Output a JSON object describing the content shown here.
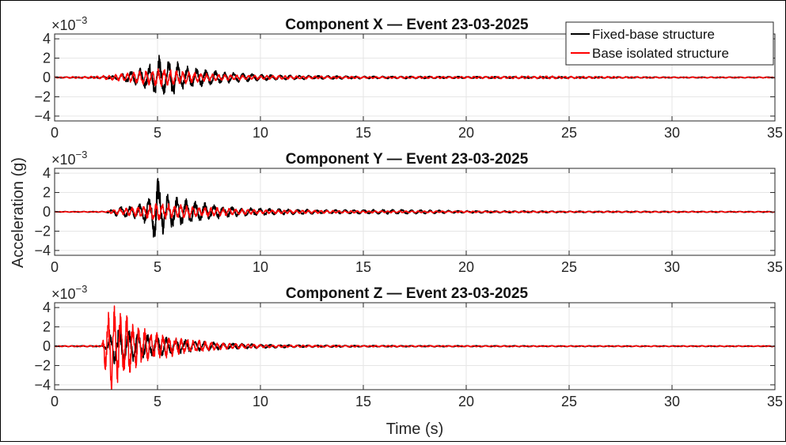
{
  "figure": {
    "ylabel": "Acceleration (g)",
    "xlabel": "Time (s)",
    "colors": {
      "fixed": "#000000",
      "isolated": "#ff0000",
      "grid": "#e6e6e6",
      "axis": "#262626"
    }
  },
  "legend": {
    "placement": "top-right",
    "items": [
      {
        "name": "Fixed-base structure",
        "color": "#000000"
      },
      {
        "name": "Base isolated structure",
        "color": "#ff0000"
      }
    ]
  },
  "chart_data": [
    {
      "type": "line",
      "title": "Component X — Event 23-03-2025",
      "xlabel": "",
      "ylabel": "",
      "exponent": "×10",
      "exponent_power": "−3",
      "xlim": [
        0,
        35
      ],
      "ylim": [
        -4.5,
        4.5
      ],
      "xticks": [
        0,
        5,
        10,
        15,
        20,
        25,
        30,
        35
      ],
      "yticks": [
        -4,
        -2,
        0,
        2,
        4
      ],
      "grid": true,
      "series": [
        {
          "name": "Fixed-base structure",
          "envelope": [
            [
              0,
              0.05
            ],
            [
              2,
              0.06
            ],
            [
              3,
              0.2
            ],
            [
              4,
              0.8
            ],
            [
              4.8,
              1.5
            ],
            [
              5.1,
              2.2
            ],
            [
              5.4,
              1.4
            ],
            [
              5.7,
              2.0
            ],
            [
              6.2,
              1.2
            ],
            [
              7,
              0.9
            ],
            [
              8,
              0.6
            ],
            [
              9,
              0.45
            ],
            [
              10,
              0.3
            ],
            [
              12,
              0.2
            ],
            [
              15,
              0.13
            ],
            [
              20,
              0.1
            ],
            [
              25,
              0.08
            ],
            [
              30,
              0.05
            ],
            [
              35,
              0.05
            ]
          ]
        },
        {
          "name": "Base isolated structure",
          "envelope": [
            [
              0,
              0.06
            ],
            [
              2,
              0.12
            ],
            [
              3,
              0.3
            ],
            [
              4,
              0.6
            ],
            [
              5,
              0.9
            ],
            [
              6,
              0.7
            ],
            [
              7,
              0.45
            ],
            [
              8,
              0.3
            ],
            [
              10,
              0.2
            ],
            [
              12,
              0.15
            ],
            [
              15,
              0.1
            ],
            [
              20,
              0.1
            ],
            [
              24,
              0.15
            ],
            [
              25,
              0.12
            ],
            [
              30,
              0.06
            ],
            [
              35,
              0.05
            ]
          ]
        }
      ]
    },
    {
      "type": "line",
      "title": "Component Y — Event 23-03-2025",
      "xlabel": "",
      "ylabel": "",
      "exponent": "×10",
      "exponent_power": "−3",
      "xlim": [
        0,
        35
      ],
      "ylim": [
        -4.5,
        4.5
      ],
      "xticks": [
        0,
        5,
        10,
        15,
        20,
        25,
        30,
        35
      ],
      "yticks": [
        -4,
        -2,
        0,
        2,
        4
      ],
      "grid": true,
      "series": [
        {
          "name": "Fixed-base structure",
          "envelope": [
            [
              0,
              0.03
            ],
            [
              2.5,
              0.05
            ],
            [
              3,
              0.4
            ],
            [
              4,
              0.7
            ],
            [
              4.7,
              1.4
            ],
            [
              4.95,
              4.3
            ],
            [
              5.1,
              2.6
            ],
            [
              5.5,
              1.8
            ],
            [
              6,
              1.4
            ],
            [
              7,
              1.0
            ],
            [
              8,
              0.65
            ],
            [
              9,
              0.45
            ],
            [
              10,
              0.35
            ],
            [
              13,
              0.2
            ],
            [
              17,
              0.22
            ],
            [
              20,
              0.12
            ],
            [
              25,
              0.08
            ],
            [
              30,
              0.06
            ],
            [
              35,
              0.05
            ]
          ]
        },
        {
          "name": "Base isolated structure",
          "envelope": [
            [
              0,
              0.03
            ],
            [
              2.5,
              0.05
            ],
            [
              3,
              0.3
            ],
            [
              4,
              0.5
            ],
            [
              5,
              0.9
            ],
            [
              6,
              0.7
            ],
            [
              7,
              0.5
            ],
            [
              8,
              0.4
            ],
            [
              10,
              0.2
            ],
            [
              14,
              0.12
            ],
            [
              20,
              0.08
            ],
            [
              25,
              0.06
            ],
            [
              30,
              0.05
            ],
            [
              35,
              0.04
            ]
          ]
        }
      ]
    },
    {
      "type": "line",
      "title": "Component Z — Event 23-03-2025",
      "xlabel": "Time (s)",
      "ylabel": "",
      "exponent": "×10",
      "exponent_power": "−3",
      "xlim": [
        0,
        35
      ],
      "ylim": [
        -4.5,
        4.5
      ],
      "xticks": [
        0,
        5,
        10,
        15,
        20,
        25,
        30,
        35
      ],
      "yticks": [
        -4,
        -2,
        0,
        2,
        4
      ],
      "grid": true,
      "series": [
        {
          "name": "Fixed-base structure",
          "envelope": [
            [
              0,
              0.04
            ],
            [
              2.4,
              0.06
            ],
            [
              3,
              2.0
            ],
            [
              4,
              1.4
            ],
            [
              5,
              1.0
            ],
            [
              6,
              0.7
            ],
            [
              7,
              0.5
            ],
            [
              8,
              0.35
            ],
            [
              10,
              0.2
            ],
            [
              12,
              0.12
            ],
            [
              15,
              0.08
            ],
            [
              20,
              0.06
            ],
            [
              25,
              0.05
            ],
            [
              35,
              0.04
            ]
          ]
        },
        {
          "name": "Base isolated structure",
          "envelope": [
            [
              0,
              0.05
            ],
            [
              2.3,
              0.08
            ],
            [
              2.45,
              2.5
            ],
            [
              2.75,
              4.3
            ],
            [
              3.0,
              3.8
            ],
            [
              3.3,
              2.7
            ],
            [
              3.6,
              3.3
            ],
            [
              3.9,
              2.2
            ],
            [
              4.5,
              1.6
            ],
            [
              5.2,
              1.3
            ],
            [
              6,
              0.9
            ],
            [
              7,
              0.6
            ],
            [
              8,
              0.35
            ],
            [
              9,
              0.25
            ],
            [
              10,
              0.18
            ],
            [
              11,
              0.12
            ],
            [
              15,
              0.08
            ],
            [
              20,
              0.06
            ],
            [
              25,
              0.05
            ],
            [
              35,
              0.05
            ]
          ]
        }
      ]
    }
  ]
}
